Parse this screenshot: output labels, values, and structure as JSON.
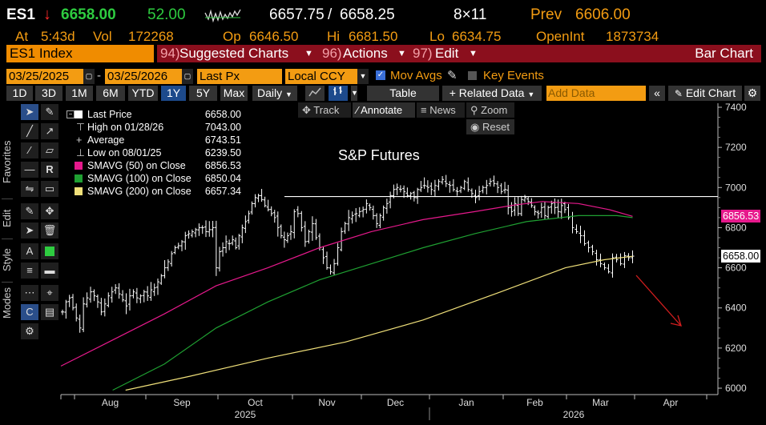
{
  "quote": {
    "ticker": "ES1",
    "price": "6658.00",
    "change": "52.00",
    "bid": "6657.75",
    "ask": "6658.25",
    "size": "8×11",
    "prev_label": "Prev",
    "prev": "6606.00",
    "at_label": "At",
    "time": "5:43d",
    "vol_label": "Vol",
    "vol": "172268",
    "op_label": "Op",
    "open": "6646.50",
    "hi_label": "Hi",
    "high": "6681.50",
    "lo_label": "Lo",
    "low": "6634.75",
    "oi_label": "OpenInt",
    "oi": "1873734"
  },
  "menubar": {
    "security": "ES1 Index",
    "suggested_num": "94)",
    "suggested": "Suggested Charts",
    "actions_num": "96)",
    "actions": "Actions",
    "edit_num": "97)",
    "edit": "Edit",
    "chart_type": "Bar Chart"
  },
  "settings": {
    "start_date": "03/25/2025",
    "end_date": "03/25/2026",
    "field": "Last Px",
    "currency": "Local CCY",
    "mov_avgs": "Mov Avgs",
    "key_events": "Key Events"
  },
  "toolbar": {
    "periods": [
      "1D",
      "3D",
      "1M",
      "6M",
      "YTD",
      "1Y",
      "5Y",
      "Max"
    ],
    "selected_period": "1Y",
    "frequency": "Daily",
    "table": "Table",
    "related": "+ Related Data",
    "add_data": "Add Data",
    "edit_chart": "Edit Chart"
  },
  "chart_controls": {
    "track": "Track",
    "annotate": "Annotate",
    "news": "News",
    "zoom": "Zoom",
    "reset": "Reset"
  },
  "side_labels": {
    "favorites": "Favorites",
    "edit": "Edit",
    "style": "Style",
    "modes": "Modes"
  },
  "colors": {
    "bars": "#ffffff",
    "sma50": "#e6198c",
    "sma100": "#1fa032",
    "sma200": "#f0e07a",
    "hline": "#ffffff",
    "arrow": "#d21e1e",
    "accent_orange": "#f39c12",
    "price_tag": "#ffffff"
  },
  "chart_data": {
    "type": "bar",
    "title": "S&P Futures",
    "legend": [
      {
        "name": "Last Price",
        "value": "6658.00",
        "color": "#ffffff"
      },
      {
        "name": "High on 01/28/26",
        "value": "7043.00",
        "symbol": "⊤"
      },
      {
        "name": "Average",
        "value": "6743.51",
        "symbol": "+"
      },
      {
        "name": "Low on 08/01/25",
        "value": "6239.50",
        "symbol": "⊥"
      },
      {
        "name": "SMAVG (50)  on Close",
        "value": "6856.53",
        "color": "#e6198c"
      },
      {
        "name": "SMAVG (100)  on Close",
        "value": "6850.04",
        "color": "#1fa032"
      },
      {
        "name": "SMAVG (200)  on Close",
        "value": "6657.34",
        "color": "#f0e07a"
      }
    ],
    "yaxis": {
      "min": 6000,
      "max": 7400,
      "ticks": [
        "6000",
        "6200",
        "6400",
        "6600",
        "6800",
        "7000",
        "7200",
        "7400"
      ]
    },
    "xaxis": {
      "months": [
        "Aug",
        "Sep",
        "Oct",
        "Nov",
        "Dec",
        "Jan",
        "Feb",
        "Mar",
        "Apr"
      ],
      "years": [
        "2025",
        "2026"
      ]
    },
    "price_tags": [
      {
        "label": "6856.53",
        "value": 6856.53,
        "color": "#e6198c"
      },
      {
        "label": "6658.00",
        "value": 6658.0,
        "color": "#ffffff"
      }
    ],
    "resistance_line": 6955,
    "closes_by_month": {
      "Jul": [
        6380,
        6430,
        6450,
        6400
      ],
      "Aug": [
        6350,
        6300,
        6420,
        6450,
        6480,
        6460,
        6430,
        6380,
        6420,
        6460,
        6480,
        6500,
        6470,
        6440,
        6410,
        6460,
        6480,
        6450,
        6460,
        6480
      ],
      "Sep": [
        6460,
        6490,
        6500,
        6530,
        6560,
        6600,
        6630,
        6670,
        6700,
        6710,
        6730,
        6760,
        6770,
        6780,
        6790,
        6800,
        6800,
        6780,
        6790,
        6800,
        6600
      ],
      "Oct": [
        6680,
        6700,
        6730,
        6720,
        6740,
        6700,
        6760,
        6800,
        6830,
        6870,
        6920,
        6950,
        6960,
        6940,
        6910,
        6890,
        6870,
        6850,
        6800,
        6760,
        6740,
        6760,
        6780
      ],
      "Nov": [
        6880,
        6870,
        6800,
        6730,
        6780,
        6820,
        6750,
        6700,
        6650,
        6600,
        6580,
        6620,
        6700,
        6780,
        6820,
        6850,
        6860,
        6870,
        6880
      ],
      "Dec": [
        6890,
        6920,
        6900,
        6860,
        6820,
        6860,
        6900,
        6920,
        6960,
        6990,
        7000,
        6990,
        6980,
        6960,
        6970,
        6950,
        6990,
        7000,
        7010,
        7000
      ],
      "Jan": [
        6990,
        7010,
        7030,
        7040,
        7020,
        7010,
        6990,
        6980,
        7000,
        7030,
        6990,
        6970,
        6950,
        6980,
        7000,
        7010,
        7030,
        7020,
        7000,
        6980
      ],
      "Feb": [
        6990,
        6900,
        6880,
        6920,
        6870,
        6940,
        6950,
        6930,
        6910,
        6880,
        6870,
        6900,
        6860,
        6900,
        6920,
        6900,
        6880,
        6910,
        6890
      ],
      "Mar": [
        6850,
        6800,
        6780,
        6760,
        6720,
        6700,
        6680,
        6640,
        6620,
        6600,
        6580,
        6650,
        6640,
        6620,
        6660,
        6650,
        6658
      ]
    },
    "sma50": [
      [
        0,
        6110
      ],
      [
        20,
        6240
      ],
      [
        40,
        6370
      ],
      [
        60,
        6510
      ],
      [
        80,
        6600
      ],
      [
        100,
        6700
      ],
      [
        120,
        6780
      ],
      [
        140,
        6840
      ],
      [
        160,
        6880
      ],
      [
        175,
        6912
      ],
      [
        186,
        6930
      ],
      [
        200,
        6920
      ],
      [
        212,
        6890
      ],
      [
        221,
        6856.53
      ]
    ],
    "sma100": [
      [
        20,
        5990
      ],
      [
        40,
        6120
      ],
      [
        60,
        6300
      ],
      [
        80,
        6430
      ],
      [
        100,
        6540
      ],
      [
        120,
        6620
      ],
      [
        140,
        6700
      ],
      [
        160,
        6770
      ],
      [
        180,
        6830
      ],
      [
        200,
        6860
      ],
      [
        215,
        6860
      ],
      [
        221,
        6850.04
      ]
    ],
    "sma200": [
      [
        25,
        5990
      ],
      [
        50,
        6060
      ],
      [
        80,
        6150
      ],
      [
        110,
        6230
      ],
      [
        140,
        6340
      ],
      [
        170,
        6480
      ],
      [
        195,
        6600
      ],
      [
        210,
        6640
      ],
      [
        221,
        6657.34
      ]
    ]
  }
}
